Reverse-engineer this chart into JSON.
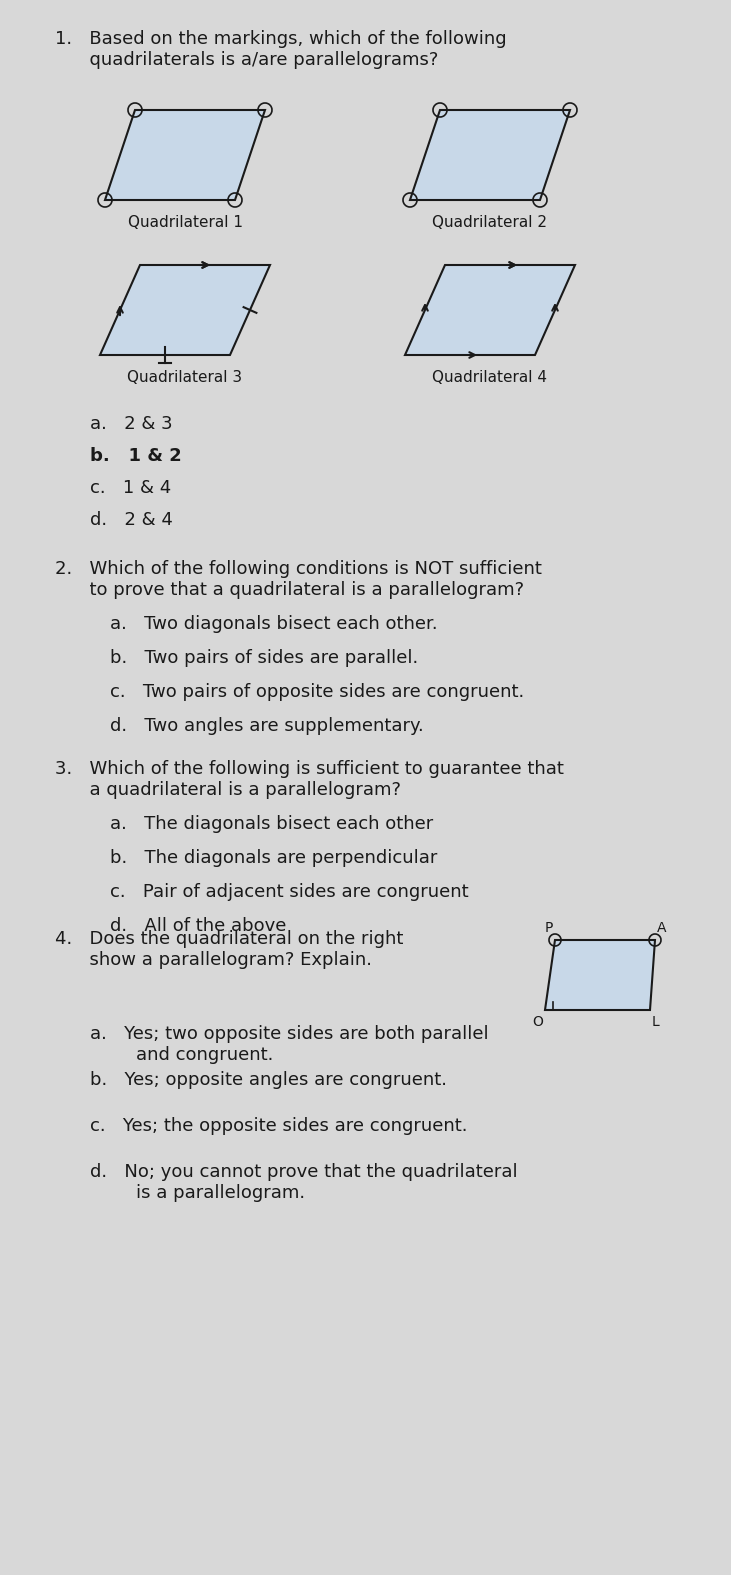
{
  "bg_color": "#d8d8d8",
  "text_color": "#1a1a1a",
  "q1_title": "1.   Based on the markings, which of the following\n      quadrilaterals is a/are parallelograms?",
  "quad1_label": "Quadrilateral 1",
  "quad2_label": "Quadrilateral 2",
  "quad3_label": "Quadrilateral 3",
  "quad4_label": "Quadrilateral 4",
  "q1_options": [
    "a.   2 & 3",
    "b.   1 & 2",
    "c.   1 & 4",
    "d.   2 & 4"
  ],
  "q2_title": "2.   Which of the following conditions is NOT sufficient\n      to prove that a quadrilateral is a parallelogram?",
  "q2_options": [
    "a.   Two diagonals bisect each other.",
    "b.   Two pairs of sides are parallel.",
    "c.   Two pairs of opposite sides are congruent.",
    "d.   Two angles are supplementary."
  ],
  "q3_title": "3.   Which of the following is sufficient to guarantee that\n      a quadrilateral is a parallelogram?",
  "q3_options": [
    "a.   The diagonals bisect each other",
    "b.   The diagonals are perpendicular",
    "c.   Pair of adjacent sides are congruent",
    "d.   All of the above"
  ],
  "q4_title": "4.   Does the quadrilateral on the right\n      show a parallelogram? Explain.",
  "q4_options": [
    "a.   Yes; two opposite sides are both parallel\n        and congruent.",
    "b.   Yes; opposite angles are congruent.",
    "c.   Yes; the opposite sides are congruent.",
    "d.   No; you cannot prove that the quadrilateral\n        is a parallelogram."
  ],
  "shape_fill": "#c8d8e8",
  "shape_edge": "#1a1a1a"
}
